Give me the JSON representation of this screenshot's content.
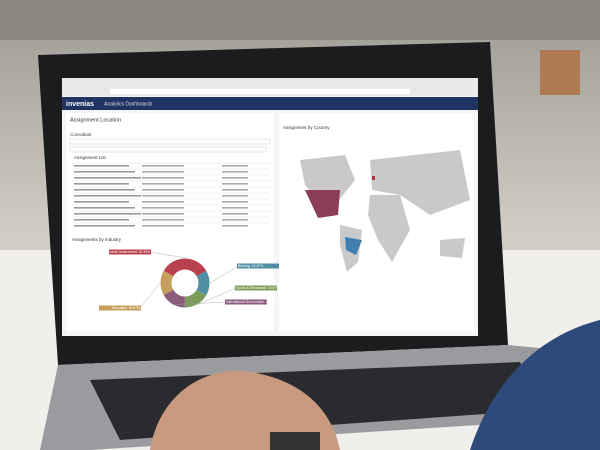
{
  "header": {
    "brand": "invenias",
    "product": "Analytics Dashboards"
  },
  "left_panel": {
    "filter_title": "Assignment Location",
    "filter_field": "Consultant",
    "list_title": "Assignment List"
  },
  "industry_chart": {
    "title": "Assignments by Industry",
    "categories": [
      "General Government",
      "Banking",
      "Sports & Recreation",
      "International Government",
      "Education"
    ],
    "values": [
      33.33,
      16.67,
      16.67,
      16.67,
      16.67
    ],
    "value_labels": [
      "33.33%",
      "16.67%",
      "16.67%",
      "16.67%",
      "16.67%"
    ],
    "colors": [
      "#b8404f",
      "#4f8fa3",
      "#7d9c5c",
      "#8b5b7d",
      "#c79f5c"
    ]
  },
  "map_panel": {
    "title": "Assignment by Country"
  }
}
